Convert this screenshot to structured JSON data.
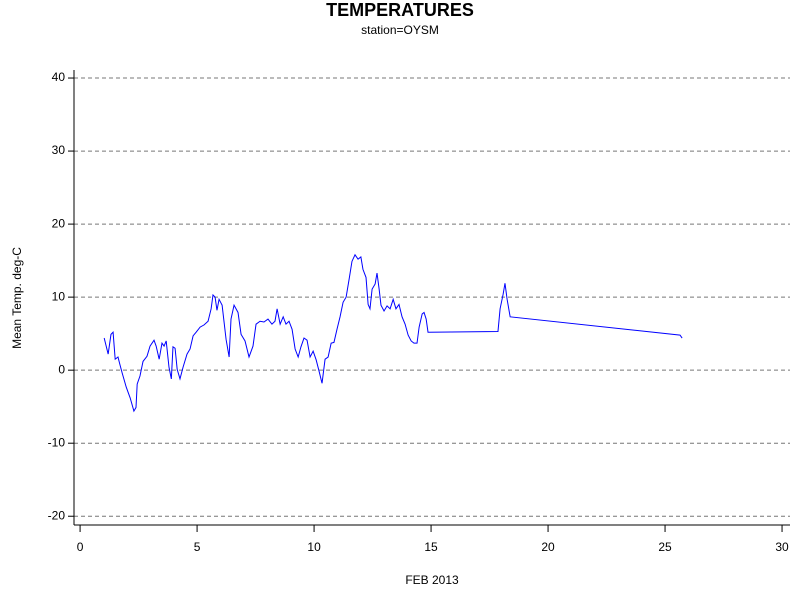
{
  "chart_data": {
    "type": "line",
    "title": "TEMPERATURES",
    "subtitle": "station=OYSM",
    "x_label": "FEB 2013",
    "y_label": "Mean Temp. deg-C",
    "x": [
      1.03,
      1.2,
      1.32,
      1.41,
      1.5,
      1.62,
      1.7,
      1.8,
      1.97,
      2.14,
      2.3,
      2.39,
      2.44,
      2.56,
      2.69,
      2.86,
      2.99,
      3.16,
      3.25,
      3.38,
      3.5,
      3.59,
      3.68,
      3.8,
      3.9,
      3.97,
      4.06,
      4.15,
      4.27,
      4.4,
      4.57,
      4.7,
      4.83,
      4.96,
      5.13,
      5.3,
      5.47,
      5.6,
      5.68,
      5.77,
      5.85,
      5.94,
      6.07,
      6.24,
      6.37,
      6.45,
      6.58,
      6.75,
      6.88,
      7.05,
      7.22,
      7.39,
      7.52,
      7.69,
      7.86,
      8.03,
      8.2,
      8.33,
      8.42,
      8.55,
      8.68,
      8.8,
      8.93,
      9.06,
      9.19,
      9.32,
      9.44,
      9.57,
      9.7,
      9.83,
      9.96,
      10.09,
      10.21,
      10.34,
      10.47,
      10.6,
      10.73,
      10.85,
      10.98,
      11.11,
      11.24,
      11.37,
      11.5,
      11.62,
      11.75,
      11.88,
      12.0,
      12.09,
      12.22,
      12.31,
      12.39,
      12.48,
      12.61,
      12.69,
      12.78,
      12.86,
      12.99,
      13.12,
      13.25,
      13.38,
      13.5,
      13.63,
      13.76,
      13.89,
      14.02,
      14.15,
      14.27,
      14.4,
      14.49,
      14.62,
      14.7,
      14.79,
      14.87,
      17.86,
      17.95,
      18.08,
      18.16,
      18.25,
      18.38,
      25.64,
      25.73
    ],
    "series": [
      {
        "name": "Mean Temp",
        "color": "#0000ff",
        "values": [
          4.4,
          2.2,
          4.9,
          5.2,
          1.5,
          1.8,
          0.8,
          -0.4,
          -2.3,
          -3.8,
          -5.6,
          -5.1,
          -1.9,
          -0.8,
          1.2,
          1.9,
          3.3,
          4.1,
          3.3,
          1.5,
          3.7,
          3.3,
          4.0,
          0.4,
          -1.2,
          3.2,
          3.0,
          0.1,
          -1.2,
          0.4,
          2.2,
          2.9,
          4.7,
          5.2,
          5.9,
          6.2,
          6.7,
          8.4,
          10.3,
          10.0,
          8.2,
          9.7,
          8.9,
          4.2,
          1.8,
          7.0,
          8.9,
          7.9,
          4.9,
          4.0,
          1.8,
          3.3,
          6.3,
          6.7,
          6.6,
          7.0,
          6.3,
          6.7,
          8.4,
          6.3,
          7.3,
          6.3,
          6.7,
          5.6,
          2.9,
          1.8,
          3.2,
          4.4,
          4.1,
          1.8,
          2.6,
          1.4,
          -0.1,
          -1.8,
          1.5,
          1.8,
          3.7,
          3.8,
          5.6,
          7.3,
          9.3,
          10.0,
          12.5,
          14.9,
          15.8,
          15.2,
          15.5,
          13.8,
          12.7,
          9.0,
          8.4,
          11.1,
          11.8,
          13.3,
          11.1,
          8.9,
          8.1,
          8.8,
          8.4,
          9.7,
          8.4,
          9.0,
          7.3,
          6.3,
          4.8,
          4.0,
          3.7,
          3.7,
          5.9,
          7.7,
          7.9,
          7.0,
          5.2,
          5.3,
          8.4,
          10.4,
          11.9,
          9.7,
          7.3,
          4.8,
          4.4
        ]
      }
    ],
    "xlim": [
      -0.26,
      30.34
    ],
    "xticks": [
      0,
      5,
      10,
      15,
      20,
      25,
      30
    ],
    "ylim": [
      -21.2,
      41.1
    ],
    "yticks": [
      -20,
      -10,
      0,
      10,
      20,
      30,
      40
    ],
    "grid": true
  }
}
